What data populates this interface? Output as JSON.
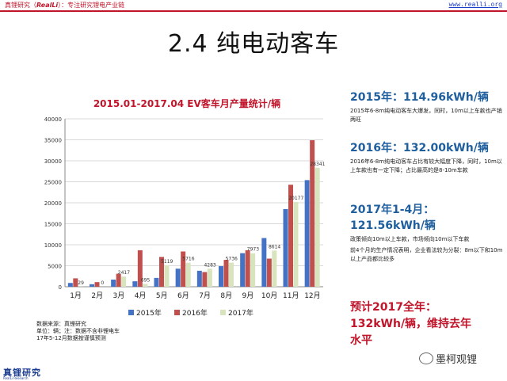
{
  "header": {
    "left_prefix": "真锂研究（",
    "left_logo": "RealLi",
    "left_suffix": "）：专注研究锂电产业链",
    "url": "www.realli.org"
  },
  "page_title": "2.4 纯电动客车",
  "chart_data": {
    "type": "bar",
    "title": "2015.01-2017.04 EV客车月产量统计/辆",
    "categories": [
      "1月",
      "2月",
      "3月",
      "4月",
      "5月",
      "6月",
      "7月",
      "8月",
      "9月",
      "10月",
      "11月",
      "12月"
    ],
    "ylim": [
      0,
      40000
    ],
    "yticks": [
      0,
      5000,
      10000,
      15000,
      20000,
      25000,
      30000,
      35000,
      40000
    ],
    "grid": true,
    "legend_position": "bottom",
    "series": [
      {
        "name": "2015年",
        "color": "#4472c4",
        "values": [
          900,
          600,
          1700,
          1300,
          2100,
          4300,
          3800,
          4900,
          8000,
          11600,
          18500,
          25400
        ]
      },
      {
        "name": "2016年",
        "color": "#c0504d",
        "values": [
          2000,
          1100,
          3100,
          8700,
          7100,
          8400,
          3500,
          6400,
          8700,
          6700,
          24300,
          34900
        ]
      },
      {
        "name": "2017年",
        "color": "#d7e4bd",
        "values": [
          29,
          0,
          2417,
          695,
          5119,
          5716,
          4283,
          5736,
          7973,
          8614,
          20177,
          28341
        ]
      }
    ],
    "data_labels": [
      {
        "category_index": 0,
        "text": "29"
      },
      {
        "category_index": 1,
        "text": "0"
      },
      {
        "category_index": 2,
        "text": "2417"
      },
      {
        "category_index": 3,
        "text": "695"
      },
      {
        "category_index": 4,
        "text": "5119"
      },
      {
        "category_index": 5,
        "text": "5716"
      },
      {
        "category_index": 6,
        "text": "4283"
      },
      {
        "category_index": 7,
        "text": "5736"
      },
      {
        "category_index": 8,
        "text": "7973"
      },
      {
        "category_index": 9,
        "text": "8614"
      },
      {
        "category_index": 10,
        "text": "20177"
      },
      {
        "category_index": 11,
        "text": "28341"
      }
    ]
  },
  "notes": {
    "line1": "数据来源：真锂研究",
    "line2": "单位：辆；注：数据不含非锂电车",
    "line3": "17年5-12月数据按谨慎预测"
  },
  "side": {
    "item1_head": "2015年：114.96kWh/辆",
    "item1_text": "2015年6-8m纯电动客车大爆发，同时，10m以上车款也产销两旺",
    "item2_head": "2016年：132.00kWh/辆",
    "item2_text": "2016年6-8m纯电动客车占比有较大幅度下降，同时，10m以上车款也有一定下降；占比最高的是8-10m车款",
    "item3_head_line1": "2017年1-4月：",
    "item3_head_line2": "121.56kWh/辆",
    "item3_text1": "政策倾向10m以上车款，市场倾向10m以下车款",
    "item3_text2": "前4个月的生产情况表明，企业看法较为分裂：8m以下和10m以上产品都比较多",
    "final_line1": "预计2017全年：",
    "final_line2": "132kWh/辆，维持去年",
    "final_line3": "水平"
  },
  "footer": {
    "logo": "真锂研究",
    "logo_sub": "RealLi Research"
  },
  "wechat": {
    "name": "墨柯观锂"
  }
}
